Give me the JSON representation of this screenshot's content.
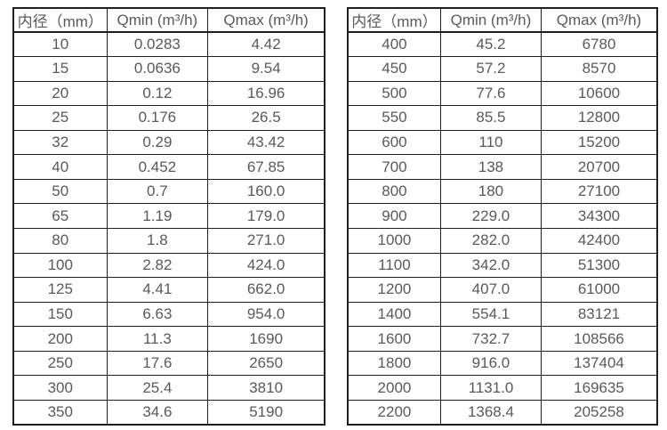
{
  "chart_data": [
    {
      "type": "table",
      "columns": [
        "内径（mm）",
        "Qmin (m³/h)",
        "Qmax (m³/h)"
      ],
      "rows": [
        [
          "10",
          "0.0283",
          "4.42"
        ],
        [
          "15",
          "0.0636",
          "9.54"
        ],
        [
          "20",
          "0.12",
          "16.96"
        ],
        [
          "25",
          "0.176",
          "26.5"
        ],
        [
          "32",
          "0.29",
          "43.42"
        ],
        [
          "40",
          "0.452",
          "67.85"
        ],
        [
          "50",
          "0.7",
          "160.0"
        ],
        [
          "65",
          "1.19",
          "179.0"
        ],
        [
          "80",
          "1.8",
          "271.0"
        ],
        [
          "100",
          "2.82",
          "424.0"
        ],
        [
          "125",
          "4.41",
          "662.0"
        ],
        [
          "150",
          "6.63",
          "954.0"
        ],
        [
          "200",
          "11.3",
          "1690"
        ],
        [
          "250",
          "17.6",
          "2650"
        ],
        [
          "300",
          "25.4",
          "3810"
        ],
        [
          "350",
          "34.6",
          "5190"
        ]
      ]
    },
    {
      "type": "table",
      "columns": [
        "内径（mm）",
        "Qmin (m³/h)",
        "Qmax (m³/h)"
      ],
      "rows": [
        [
          "400",
          "45.2",
          "6780"
        ],
        [
          "450",
          "57.2",
          "8570"
        ],
        [
          "500",
          "77.6",
          "10600"
        ],
        [
          "550",
          "85.5",
          "12800"
        ],
        [
          "600",
          "110",
          "15200"
        ],
        [
          "700",
          "138",
          "20700"
        ],
        [
          "800",
          "180",
          "27100"
        ],
        [
          "900",
          "229.0",
          "34300"
        ],
        [
          "1000",
          "282.0",
          "42400"
        ],
        [
          "1100",
          "342.0",
          "51300"
        ],
        [
          "1200",
          "407.0",
          "61000"
        ],
        [
          "1400",
          "554.1",
          "83121"
        ],
        [
          "1600",
          "732.7",
          "108566"
        ],
        [
          "1800",
          "916.0",
          "137404"
        ],
        [
          "2000",
          "1131.0",
          "169635"
        ],
        [
          "2200",
          "1368.4",
          "205258"
        ]
      ]
    }
  ],
  "colors": {
    "border": "#1f1f1f",
    "text": "#595959",
    "background": "#ffffff"
  }
}
